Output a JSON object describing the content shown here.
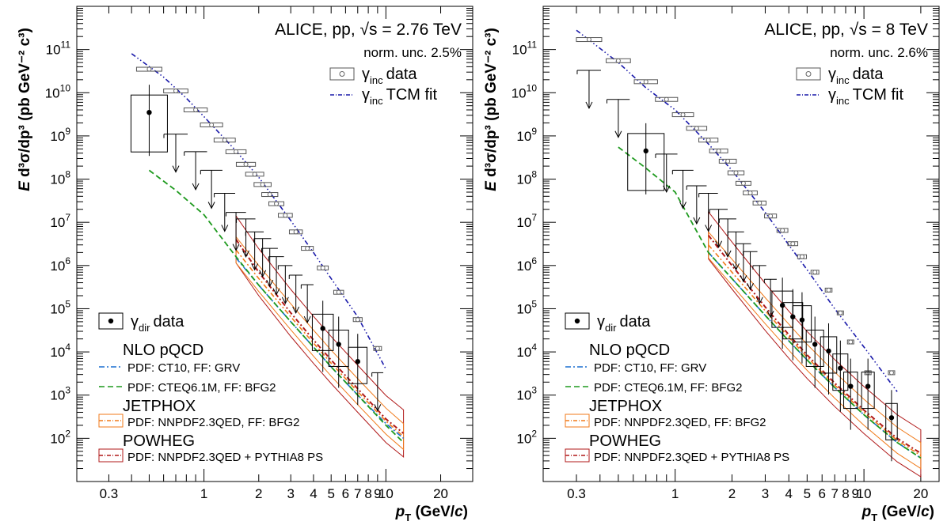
{
  "chart_data": [
    {
      "type": "scatter",
      "title": "ALICE, pp, √s = 2.76 TeV",
      "norm_unc": "norm. unc. 2.5%",
      "xlabel": "p_T (GeV/c)",
      "ylabel": "E d³σ/dp³ (pb GeV⁻² c³)",
      "xscale": "log",
      "yscale": "log",
      "xlim": [
        0.2,
        30
      ],
      "ylim": [
        10,
        1000000000000.0
      ],
      "xticks": [
        0.3,
        1,
        2,
        3,
        4,
        5,
        6,
        7,
        8,
        9,
        10,
        20
      ],
      "xtick_labels": [
        "0.3",
        "1",
        "2",
        "3",
        "4",
        "5",
        "6",
        "7",
        "8",
        "9",
        "10",
        "20"
      ],
      "legend_position": "top-right and bottom-left",
      "series": [
        {
          "name": "γ_inc data",
          "x": [
            0.5,
            0.7,
            0.9,
            1.1,
            1.3,
            1.5,
            1.7,
            1.9,
            2.1,
            2.3,
            2.5,
            2.8,
            3.2,
            3.7,
            4.5,
            5.5,
            7.0,
            9.0
          ],
          "y": [
            35000000000.0,
            11000000000.0,
            4000000000.0,
            1800000000.0,
            800000000.0,
            430000000.0,
            220000000.0,
            130000000.0,
            75000000.0,
            44000000.0,
            27000000.0,
            14500000.0,
            6000000.0,
            2500000.0,
            880000.0,
            240000.0,
            56000.0,
            12000.0
          ]
        },
        {
          "name": "γ_inc TCM fit",
          "x": [
            0.4,
            0.6,
            0.8,
            1.0,
            1.5,
            2.0,
            3.0,
            4.0,
            5.0,
            7.0,
            10.0
          ],
          "y": [
            80000000000.0,
            23000000000.0,
            7500000000.0,
            2800000000.0,
            450000000.0,
            110000000.0,
            11000000.0,
            2000000.0,
            500000.0,
            65000.0,
            4000.0
          ]
        },
        {
          "name": "γ_dir data",
          "x": [
            0.5,
            4.5,
            5.5,
            7.0
          ],
          "y": [
            3500000000.0,
            35000.0,
            15000.0,
            6000.0
          ]
        },
        {
          "name": "γ_dir upper limits",
          "x": [
            0.7,
            0.9,
            1.1,
            1.3,
            1.5,
            1.7,
            1.9,
            2.1,
            2.3,
            2.5,
            2.8,
            3.2,
            3.7,
            9.0
          ],
          "y": [
            1100000000.0,
            430000000.0,
            160000000.0,
            47000000.0,
            17000000.0,
            12000000.0,
            6000000.0,
            4200000.0,
            2500000.0,
            1600000.0,
            1000000.0,
            600000.0,
            360000.0,
            3300.0
          ]
        },
        {
          "name": "PDF: CT10, FF: GRV",
          "x": [
            1.5,
            2,
            3,
            4,
            5,
            7,
            10,
            12.5
          ],
          "y": [
            1500000.0,
            350000.0,
            50000.0,
            13000.0,
            4500.0,
            1000.0,
            220.0,
            100.0
          ]
        },
        {
          "name": "PDF: CTEQ6.1M, FF: BFG2",
          "x": [
            0.5,
            0.7,
            1.0,
            1.5,
            2,
            3,
            4,
            5,
            7,
            10,
            12.5
          ],
          "y": [
            160000000.0,
            55000000.0,
            15000000.0,
            1600000.0,
            350000.0,
            50000.0,
            13000.0,
            4500.0,
            1000.0,
            200.0,
            80.0
          ]
        },
        {
          "name": "PDF: NNPDF2.3QED, FF: BFG2",
          "x": [
            1.5,
            2,
            3,
            4,
            5,
            7,
            10,
            12.5
          ],
          "y": [
            2300000.0,
            500000.0,
            65000.0,
            16000.0,
            5500.0,
            1200.0,
            250.0,
            110.0
          ]
        },
        {
          "name": "PDF: NNPDF2.3QED + PYTHIA8 PS",
          "x": [
            1.5,
            2,
            3,
            4,
            5,
            7,
            10,
            12.5
          ],
          "y": [
            4000000.0,
            700000.0,
            80000.0,
            19000.0,
            6500.0,
            1400.0,
            280.0,
            130.0
          ]
        }
      ]
    },
    {
      "type": "scatter",
      "title": "ALICE, pp, √s = 8 TeV",
      "norm_unc": "norm. unc. 2.6%",
      "xlabel": "p_T (GeV/c)",
      "ylabel": "E d³σ/dp³ (pb GeV⁻² c³)",
      "xscale": "log",
      "yscale": "log",
      "xlim": [
        0.2,
        25
      ],
      "ylim": [
        10,
        1000000000000.0
      ],
      "xticks": [
        0.3,
        1,
        2,
        3,
        4,
        5,
        6,
        7,
        8,
        9,
        10,
        20
      ],
      "xtick_labels": [
        "0.3",
        "1",
        "2",
        "3",
        "4",
        "5",
        "6",
        "7",
        "8",
        "9",
        "10",
        "20"
      ],
      "legend_position": "top-right and bottom-left",
      "series": [
        {
          "name": "γ_inc data",
          "x": [
            0.35,
            0.5,
            0.7,
            0.9,
            1.1,
            1.3,
            1.5,
            1.7,
            1.9,
            2.1,
            2.3,
            2.5,
            2.8,
            3.2,
            3.7,
            4.2,
            4.7,
            5.5,
            6.5,
            7.5,
            8.5,
            10.5,
            14.0
          ],
          "y": [
            170000000000.0,
            55000000000.0,
            18000000000.0,
            7000000000.0,
            3100000000.0,
            1500000000.0,
            800000000.0,
            450000000.0,
            260000000.0,
            140000000.0,
            80000000.0,
            48000000.0,
            28000000.0,
            14000000.0,
            6500000.0,
            3200000.0,
            1600000.0,
            700000.0,
            270000.0,
            80000.0,
            17000.0,
            3300.0,
            3300.0
          ]
        },
        {
          "name": "γ_inc TCM fit",
          "x": [
            0.3,
            0.5,
            0.7,
            1.0,
            1.5,
            2.0,
            3.0,
            4.0,
            5.0,
            7.0,
            10.0,
            15.0
          ],
          "y": [
            280000000000.0,
            50000000000.0,
            13000000000.0,
            4000000000.0,
            650000000.0,
            160000000.0,
            17000000.0,
            3000000.0,
            800000.0,
            100000.0,
            13000.0,
            1200.0
          ]
        },
        {
          "name": "γ_dir data",
          "x": [
            0.7,
            3.7,
            4.2,
            4.7,
            5.5,
            6.5,
            7.5,
            8.5,
            10.5,
            14.0
          ],
          "y": [
            450000000.0,
            120000.0,
            65000.0,
            55000.0,
            15000.0,
            10500.0,
            4200.0,
            1600.0,
            1600.0,
            300.0
          ]
        },
        {
          "name": "γ_dir upper limits",
          "x": [
            0.35,
            0.5,
            0.9,
            1.1,
            1.3,
            1.5,
            1.7,
            1.9,
            2.1,
            2.3,
            2.5,
            2.8,
            3.2
          ],
          "y": [
            33000000000.0,
            7000000000.0,
            380000000.0,
            160000000.0,
            70000000.0,
            47000000.0,
            20000000.0,
            12000000.0,
            6000000.0,
            3200000.0,
            2100000.0,
            1000000.0,
            480000.0
          ]
        },
        {
          "name": "PDF: CT10, FF: GRV",
          "x": [
            1.5,
            2,
            3,
            4,
            5,
            7,
            10,
            15,
            20
          ],
          "y": [
            2000000.0,
            500000.0,
            70000.0,
            18000.0,
            6500.0,
            1500.0,
            350.0,
            80.0,
            35.0
          ]
        },
        {
          "name": "PDF: CTEQ6.1M, FF: BFG2",
          "x": [
            0.5,
            0.7,
            1.0,
            1.5,
            2,
            3,
            4,
            5,
            7,
            10,
            15,
            20
          ],
          "y": [
            550000000.0,
            180000000.0,
            50000000.0,
            2000000.0,
            500000.0,
            70000.0,
            18000.0,
            6500.0,
            1500.0,
            350.0,
            80.0,
            35.0
          ]
        },
        {
          "name": "PDF: NNPDF2.3QED, FF: BFG2",
          "x": [
            1.5,
            2,
            3,
            4,
            5,
            7,
            10,
            15,
            20
          ],
          "y": [
            3000000.0,
            700000.0,
            90000.0,
            22000.0,
            7500.0,
            1700.0,
            400.0,
            90.0,
            40.0
          ]
        },
        {
          "name": "PDF: NNPDF2.3QED + PYTHIA8 PS",
          "x": [
            1.5,
            2,
            3,
            4,
            5,
            7,
            10,
            15,
            20
          ],
          "y": [
            5000000.0,
            1000000.0,
            110000.0,
            25000.0,
            8500.0,
            1900.0,
            450.0,
            100.0,
            45.0
          ]
        }
      ]
    }
  ],
  "legend": {
    "inc_data_sym": "γ",
    "inc_data_sub": "inc",
    "inc_data_text": "data",
    "inc_fit_sym": "γ",
    "inc_fit_sub": "inc",
    "inc_fit_text": "TCM fit",
    "dir_data_sym": "γ",
    "dir_data_sub": "dir",
    "dir_data_text": "data",
    "nlo_header": "NLO pQCD",
    "ct10": "PDF: CT10, FF: GRV",
    "cteq": "PDF: CTEQ6.1M, FF: BFG2",
    "jetphox_header": "JETPHOX",
    "jetphox": "PDF: NNPDF2.3QED, FF: BFG2",
    "powheg_header": "POWHEG",
    "powheg": "PDF: NNPDF2.3QED + PYTHIA8 PS"
  },
  "colors": {
    "ct10": "#1a6fd0",
    "cteq": "#1e9a1e",
    "jetphox": "#f07a1a",
    "powheg": "#b01818",
    "inc_fit": "#1a1aaa",
    "inc_data": "#888888"
  }
}
